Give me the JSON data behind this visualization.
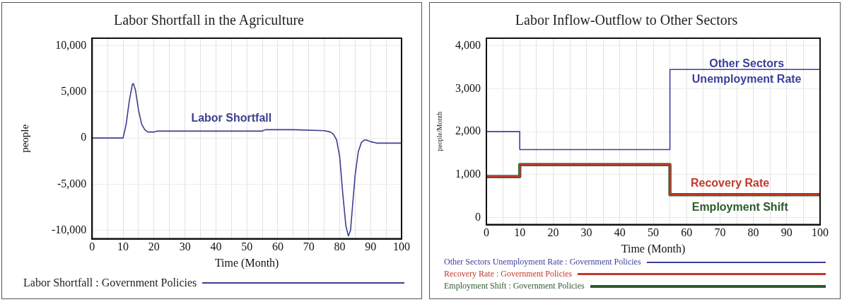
{
  "chart_data": [
    {
      "type": "line",
      "title": "Labor Shortfall in the Agriculture",
      "xlabel": "Time (Month)",
      "ylabel": "people",
      "x": [
        0,
        10,
        11,
        12,
        13,
        13.3,
        14,
        15,
        16,
        17,
        18,
        20,
        21,
        30,
        55,
        56,
        65,
        75,
        77,
        78,
        79,
        80,
        81,
        82,
        82.8,
        83.5,
        84,
        85,
        86,
        87,
        88,
        89,
        90,
        92,
        100
      ],
      "series": [
        {
          "name": "Labor Shortfall : Government Policies",
          "color": "#3c3f8f",
          "values": [
            0,
            0,
            1500,
            4000,
            5800,
            5900,
            5200,
            3000,
            1500,
            900,
            650,
            650,
            750,
            750,
            750,
            900,
            900,
            800,
            650,
            400,
            -200,
            -2000,
            -6000,
            -9500,
            -10600,
            -10000,
            -8000,
            -4000,
            -1500,
            -500,
            -200,
            -250,
            -400,
            -550,
            -550
          ]
        }
      ],
      "annotations": [
        "Labor Shortfall"
      ],
      "xlim": [
        0,
        100
      ],
      "xticks": [
        0,
        {
          "value": 5,
          "label": null
        },
        10,
        {
          "value": 15,
          "label": null
        },
        20,
        {
          "value": 25,
          "label": null
        },
        30,
        {
          "value": 35,
          "label": null
        },
        40,
        {
          "value": 45,
          "label": null
        },
        50,
        {
          "value": 55,
          "label": null
        },
        60,
        {
          "value": 65,
          "label": null
        },
        70,
        {
          "value": 75,
          "label": null
        },
        80,
        {
          "value": 85,
          "label": null
        },
        90,
        {
          "value": 95,
          "label": null
        },
        100
      ],
      "ylim": [
        -10900,
        10800
      ],
      "yticks": [
        {
          "value": -10000,
          "label": "-10,000"
        },
        {
          "value": -5000,
          "label": "-5,000"
        },
        0,
        {
          "value": 5000,
          "label": "5,000"
        },
        {
          "value": 10000,
          "label": "10,000"
        }
      ],
      "grid": true,
      "legend": "bottom",
      "marker": "none"
    },
    {
      "type": "step",
      "title": "Labor Inflow-Outflow to Other Sectors",
      "xlabel": "Time (Month)",
      "ylabel": "people/Month",
      "x": [
        0,
        10,
        55,
        100
      ],
      "series": [
        {
          "name": "Other Sectors Unemployment Rate : Government Policies",
          "color": "#3c3f9a",
          "values": [
            2000,
            1580,
            3450,
            3450
          ]
        },
        {
          "name": "Recovery Rate : Government Policies",
          "color": "#c0392b",
          "values": [
            950,
            1230,
            530,
            530
          ]
        },
        {
          "name": "Employment Shift : Government Policies",
          "color": "#2c5a2c",
          "values": [
            950,
            1230,
            530,
            530
          ]
        }
      ],
      "annotations": [
        "Other Sectors Unemployment Rate",
        "Recovery Rate",
        "Employment Shift"
      ],
      "xlim": [
        0,
        100
      ],
      "xticks": [
        0,
        {
          "value": 5,
          "label": null
        },
        10,
        {
          "value": 15,
          "label": null
        },
        20,
        {
          "value": 25,
          "label": null
        },
        30,
        {
          "value": 35,
          "label": null
        },
        40,
        {
          "value": 45,
          "label": null
        },
        50,
        {
          "value": 55,
          "label": null
        },
        60,
        {
          "value": 65,
          "label": null
        },
        70,
        {
          "value": 75,
          "label": null
        },
        80,
        {
          "value": 85,
          "label": null
        },
        90,
        {
          "value": 95,
          "label": null
        },
        100
      ],
      "ylim": [
        -170,
        4180
      ],
      "yticks": [
        0,
        {
          "value": 1000,
          "label": "1,000"
        },
        {
          "value": 2000,
          "label": "2,000"
        },
        {
          "value": 3000,
          "label": "3,000"
        },
        {
          "value": 4000,
          "label": "4,000"
        }
      ],
      "grid": true,
      "legend": "bottom",
      "marker": "none"
    }
  ]
}
